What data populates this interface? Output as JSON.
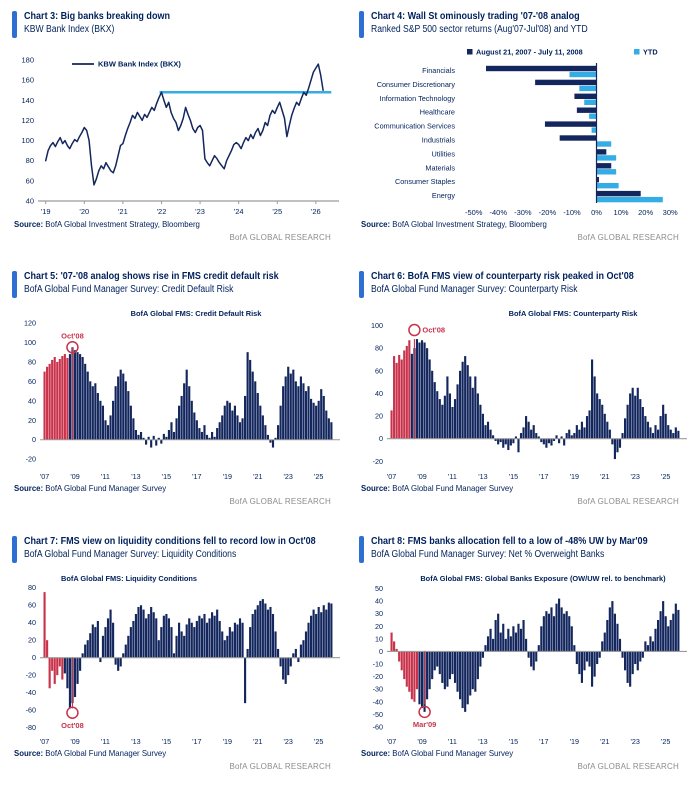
{
  "page": {
    "watermark": "BofA GLOBAL RESEARCH",
    "source_label": "Source:"
  },
  "colors": {
    "navy": "#13265E",
    "red": "#C8324A",
    "light_blue": "#33ADE3",
    "title_navy": "#00205B",
    "accent_blue": "#2E6FD2",
    "watermark_gray": "#8C8C8C",
    "axis_gray": "#9B9B9B"
  },
  "chart_data": [
    {
      "type": "line",
      "header_title": "Chart 3: Big banks breaking down",
      "header_subtitle": "KBW Bank Index (BKX)",
      "source_text": "BofA Global Investment Strategy, Bloomberg",
      "legend_label": "KBW Bank Index (BKX)",
      "x_start": 2019.0,
      "x_step": 0.0625,
      "xlim": [
        2018.8,
        2026.6
      ],
      "ylim": [
        40,
        185
      ],
      "yticks": [
        40,
        60,
        80,
        100,
        120,
        140,
        160,
        180
      ],
      "xticks": [
        [
          2019,
          "'19"
        ],
        [
          2020,
          "'20"
        ],
        [
          2021,
          "'21"
        ],
        [
          2022,
          "'22"
        ],
        [
          2023,
          "'23"
        ],
        [
          2024,
          "'24"
        ],
        [
          2025,
          "'25"
        ],
        [
          2026,
          "'26"
        ]
      ],
      "support_line": {
        "y": 148,
        "x1": 2021.95,
        "x2": 2026.4
      },
      "values": [
        80,
        90,
        95,
        98,
        94,
        99,
        103,
        97,
        100,
        95,
        92,
        97,
        101,
        99,
        104,
        108,
        113,
        110,
        100,
        75,
        56,
        62,
        70,
        75,
        72,
        78,
        74,
        70,
        68,
        75,
        85,
        95,
        97,
        105,
        112,
        118,
        125,
        122,
        128,
        124,
        120,
        126,
        123,
        128,
        133,
        130,
        137,
        143,
        148,
        140,
        133,
        138,
        128,
        122,
        118,
        110,
        115,
        122,
        133,
        126,
        120,
        112,
        108,
        113,
        115,
        110,
        82,
        78,
        75,
        80,
        85,
        82,
        78,
        75,
        72,
        80,
        85,
        90,
        96,
        98,
        96,
        92,
        98,
        103,
        100,
        106,
        102,
        108,
        112,
        105,
        110,
        118,
        115,
        125,
        130,
        127,
        133,
        138,
        130,
        122,
        104,
        115,
        125,
        132,
        138,
        135,
        142,
        148,
        145,
        152,
        160,
        168,
        172,
        176,
        165,
        150
      ]
    },
    {
      "type": "hbar",
      "header_title": "Chart 4: Wall St ominously trading '07-'08 analog",
      "header_subtitle": "Ranked S&P 500 sector returns (Aug'07-Jul'08) and YTD",
      "source_text": "BofA Global Investment Strategy, Bloomberg",
      "categories": [
        "Financials",
        "Consumer Discretionary",
        "Information Technology",
        "Healthcare",
        "Communication Services",
        "Industrials",
        "Utilities",
        "Materials",
        "Consumer Staples",
        "Energy"
      ],
      "series": [
        {
          "name": "August 21, 2007 - July 11, 2008",
          "color_key": "navy",
          "values": [
            -45,
            -25,
            -9,
            -8,
            -21,
            -15,
            4,
            6,
            1,
            18
          ]
        },
        {
          "name": "YTD",
          "color_key": "light_blue",
          "values": [
            -11,
            -7,
            -5,
            -3,
            -2,
            6,
            8,
            8,
            9,
            27
          ]
        }
      ],
      "xlim": [
        -56,
        34
      ],
      "xticks": [
        [
          -50,
          "-50%"
        ],
        [
          -40,
          "-40%"
        ],
        [
          -30,
          "-30%"
        ],
        [
          -20,
          "-20%"
        ],
        [
          -10,
          "-10%"
        ],
        [
          0,
          "0%"
        ],
        [
          10,
          "10%"
        ],
        [
          20,
          "20%"
        ],
        [
          30,
          "30%"
        ]
      ]
    },
    {
      "type": "bar",
      "header_title": "Chart 5: '07-'08 analog shows rise in FMS credit default risk",
      "header_subtitle": "BofA Global Fund Manager Survey: Credit Default Risk",
      "source_text": "BofA Global Fund Manager Survey",
      "inner_title": {
        "text": "BofA Global FMS: Credit Default Risk",
        "x": 0.52,
        "anchor": "middle"
      },
      "x_start": 2007.0,
      "x_step": 0.16667,
      "xlim": [
        2006.7,
        2026.4
      ],
      "ylim": [
        -28,
        122
      ],
      "yticks": [
        120,
        100,
        80,
        60,
        40,
        20,
        0,
        -20
      ],
      "xticks": [
        [
          2007,
          "'07"
        ],
        [
          2009,
          "'09"
        ],
        [
          2011,
          "'11"
        ],
        [
          2013,
          "'13"
        ],
        [
          2015,
          "'15"
        ],
        [
          2017,
          "'17"
        ],
        [
          2019,
          "'19"
        ],
        [
          2021,
          "'21"
        ],
        [
          2023,
          "'23"
        ],
        [
          2025,
          "'25"
        ]
      ],
      "red_until_x": 2008.6,
      "marker_line": {
        "x": 2008.83,
        "y": 95
      },
      "annotation": {
        "x": 2008.83,
        "y": 95,
        "label": "Oct'08",
        "placement": "above"
      },
      "values": [
        70,
        75,
        78,
        82,
        85,
        80,
        83,
        86,
        88,
        84,
        88,
        95,
        92,
        90,
        88,
        85,
        78,
        70,
        60,
        55,
        58,
        48,
        40,
        35,
        20,
        15,
        25,
        40,
        55,
        65,
        72,
        68,
        60,
        50,
        35,
        22,
        10,
        5,
        8,
        2,
        -5,
        3,
        -8,
        4,
        -6,
        2,
        -4,
        6,
        3,
        10,
        18,
        8,
        22,
        35,
        45,
        58,
        72,
        55,
        40,
        28,
        20,
        12,
        8,
        15,
        5,
        2,
        8,
        3,
        12,
        18,
        25,
        35,
        40,
        38,
        30,
        35,
        25,
        18,
        22,
        45,
        90,
        82,
        70,
        60,
        48,
        35,
        25,
        15,
        5,
        -3,
        -8,
        2,
        15,
        35,
        55,
        65,
        75,
        68,
        72,
        60,
        55,
        65,
        58,
        50,
        55,
        42,
        38,
        35,
        40,
        52,
        45,
        30,
        22,
        18
      ]
    },
    {
      "type": "bar",
      "header_title": "Chart 6: BofA FMS view of counterparty risk peaked in Oct'08",
      "header_subtitle": "BofA Global Fund Manager Survey: Counterparty Risk",
      "source_text": "BofA Global Fund Manager Survey",
      "inner_title": {
        "text": "BofA Global FMS: Counterparty Risk",
        "x": 0.62,
        "anchor": "middle"
      },
      "x_start": 2007.0,
      "x_step": 0.16667,
      "xlim": [
        2006.7,
        2026.4
      ],
      "ylim": [
        -25,
        104
      ],
      "yticks": [
        100,
        80,
        60,
        40,
        20,
        0,
        -20
      ],
      "xticks": [
        [
          2007,
          "'07"
        ],
        [
          2009,
          "'09"
        ],
        [
          2011,
          "'11"
        ],
        [
          2013,
          "'13"
        ],
        [
          2015,
          "'15"
        ],
        [
          2017,
          "'17"
        ],
        [
          2019,
          "'19"
        ],
        [
          2021,
          "'21"
        ],
        [
          2023,
          "'23"
        ],
        [
          2025,
          "'25"
        ]
      ],
      "red_until_x": 2008.3,
      "marker_line": {
        "x": 2008.5,
        "y": 88
      },
      "annotation": {
        "x": 2008.5,
        "y": 96,
        "label": "Oct'08",
        "placement": "right"
      },
      "values": [
        25,
        73,
        67,
        74,
        70,
        78,
        82,
        87,
        75,
        80,
        88,
        85,
        87,
        85,
        80,
        70,
        60,
        50,
        42,
        35,
        30,
        38,
        55,
        40,
        28,
        35,
        48,
        60,
        68,
        73,
        65,
        55,
        45,
        55,
        40,
        30,
        22,
        12,
        15,
        8,
        3,
        -2,
        -5,
        -3,
        -8,
        -5,
        -10,
        -6,
        -4,
        2,
        -12,
        5,
        10,
        20,
        15,
        8,
        12,
        5,
        2,
        -3,
        -5,
        -8,
        -4,
        -6,
        -2,
        3,
        -4,
        2,
        -6,
        5,
        8,
        3,
        5,
        12,
        8,
        15,
        10,
        20,
        25,
        70,
        55,
        40,
        35,
        30,
        22,
        15,
        8,
        -5,
        -18,
        -12,
        -8,
        5,
        18,
        30,
        40,
        45,
        38,
        45,
        35,
        28,
        20,
        15,
        10,
        5,
        12,
        8,
        20,
        30,
        22,
        12,
        8,
        5,
        10,
        7
      ]
    },
    {
      "type": "bar",
      "header_title": "Chart 7: FMS view on liquidity conditions fell to record low in Oct'08",
      "header_subtitle": "BofA Global Fund Manager Survey: Liquidity Conditions",
      "source_text": "BofA Global Fund Manager Survey",
      "inner_title": {
        "text": "BofA Global FMS: Liquidity Conditions",
        "x": 0.07,
        "anchor": "start"
      },
      "x_start": 2007.0,
      "x_step": 0.16667,
      "xlim": [
        2006.7,
        2026.4
      ],
      "ylim": [
        -85,
        82
      ],
      "yticks": [
        80,
        60,
        40,
        20,
        0,
        -20,
        -40,
        -60,
        -80
      ],
      "xticks": [
        [
          2007,
          "'07"
        ],
        [
          2009,
          "'09"
        ],
        [
          2011,
          "'11"
        ],
        [
          2013,
          "'13"
        ],
        [
          2015,
          "'15"
        ],
        [
          2017,
          "'17"
        ],
        [
          2019,
          "'19"
        ],
        [
          2021,
          "'21"
        ],
        [
          2023,
          "'23"
        ],
        [
          2025,
          "'25"
        ]
      ],
      "red_until_x": 2008.3,
      "marker_line": {
        "x": 2008.83,
        "y": -58
      },
      "annotation": {
        "x": 2008.83,
        "y": -63,
        "label": "Oct'08",
        "placement": "below"
      },
      "values": [
        75,
        20,
        -35,
        -15,
        -30,
        -20,
        -10,
        -25,
        -18,
        -35,
        -58,
        -52,
        -45,
        -30,
        -15,
        5,
        15,
        20,
        28,
        38,
        35,
        42,
        -5,
        25,
        35,
        45,
        55,
        40,
        -8,
        -15,
        -10,
        5,
        15,
        25,
        35,
        42,
        50,
        58,
        60,
        55,
        45,
        50,
        58,
        52,
        45,
        20,
        35,
        48,
        50,
        45,
        35,
        5,
        25,
        40,
        30,
        25,
        38,
        45,
        40,
        35,
        42,
        48,
        45,
        50,
        40,
        45,
        52,
        48,
        55,
        42,
        30,
        20,
        25,
        35,
        30,
        40,
        38,
        45,
        40,
        -52,
        10,
        35,
        50,
        55,
        60,
        65,
        67,
        62,
        55,
        58,
        50,
        30,
        10,
        -10,
        -25,
        -30,
        -20,
        -10,
        5,
        10,
        -5,
        15,
        20,
        30,
        40,
        48,
        55,
        50,
        58,
        52,
        60,
        55,
        63,
        62
      ]
    },
    {
      "type": "bar",
      "header_title": "Chart 8: FMS banks allocation fell to a low of -48% UW by Mar'09",
      "header_subtitle": "BofA Global Fund Manager Survey: Net % Overweight Banks",
      "source_text": "BofA Global Fund Manager Survey",
      "inner_title": {
        "text": "BofA Global FMS: Global Banks Exposure (OW/UW rel. to benchmark)",
        "x": 0.52,
        "anchor": "middle"
      },
      "x_start": 2007.0,
      "x_step": 0.16667,
      "xlim": [
        2006.7,
        2026.4
      ],
      "ylim": [
        -64,
        52
      ],
      "yticks": [
        50,
        40,
        30,
        20,
        10,
        0,
        -10,
        -20,
        -30,
        -40,
        -50,
        -60
      ],
      "xticks": [
        [
          2007,
          "'07"
        ],
        [
          2009,
          "'09"
        ],
        [
          2011,
          "'11"
        ],
        [
          2013,
          "'13"
        ],
        [
          2015,
          "'15"
        ],
        [
          2017,
          "'17"
        ],
        [
          2019,
          "'19"
        ],
        [
          2021,
          "'21"
        ],
        [
          2023,
          "'23"
        ],
        [
          2025,
          "'25"
        ]
      ],
      "red_until_x": 2008.7,
      "marker_line": {
        "x": 2009.17,
        "y": -42
      },
      "annotation": {
        "x": 2009.17,
        "y": -48,
        "label": "Mar'09",
        "placement": "below"
      },
      "values": [
        15,
        8,
        2,
        -8,
        -15,
        -22,
        -28,
        -32,
        -38,
        -40,
        -30,
        -42,
        -45,
        -48,
        -38,
        -30,
        -22,
        -15,
        -12,
        -18,
        -25,
        -30,
        -28,
        -22,
        -18,
        -25,
        -32,
        -38,
        -45,
        -48,
        -42,
        -35,
        -30,
        -32,
        -22,
        -12,
        -5,
        5,
        12,
        18,
        10,
        25,
        30,
        15,
        22,
        10,
        18,
        12,
        20,
        15,
        22,
        18,
        25,
        10,
        -5,
        -12,
        -15,
        -8,
        5,
        20,
        28,
        32,
        30,
        35,
        28,
        38,
        42,
        35,
        30,
        32,
        28,
        20,
        5,
        -10,
        -18,
        -25,
        -15,
        -8,
        -12,
        -28,
        -20,
        -10,
        -5,
        8,
        15,
        25,
        35,
        40,
        30,
        22,
        10,
        -5,
        -15,
        -25,
        -28,
        -18,
        -10,
        -15,
        -8,
        -5,
        8,
        5,
        12,
        8,
        18,
        25,
        32,
        40,
        28,
        20,
        25,
        30,
        38,
        33
      ]
    }
  ]
}
